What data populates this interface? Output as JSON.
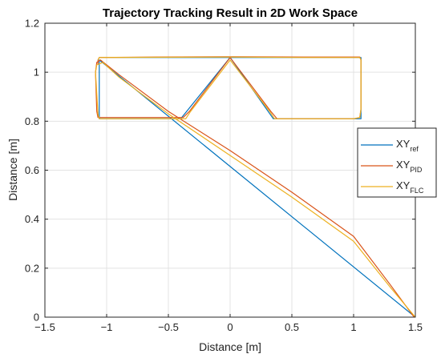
{
  "chart_data": {
    "type": "line",
    "title": "Trajectory Tracking Result in 2D Work Space",
    "xlabel": "Distance [m]",
    "ylabel": "Distance [m]",
    "xlim": [
      -1.5,
      1.5
    ],
    "ylim": [
      0,
      1.2
    ],
    "xticks": [
      -1.5,
      -1,
      -0.5,
      0,
      0.5,
      1,
      1.5
    ],
    "xtick_labels": [
      "−1.5",
      "−1",
      "−0.5",
      "0",
      "0.5",
      "1",
      "1.5"
    ],
    "yticks": [
      0,
      0.2,
      0.4,
      0.6,
      0.8,
      1,
      1.2
    ],
    "ytick_labels": [
      "0",
      "0.2",
      "0.4",
      "0.6",
      "0.8",
      "1",
      "1.2"
    ],
    "grid": true,
    "legend_position": "right",
    "series": [
      {
        "name": "XY",
        "subscript": "ref",
        "color": "#0072BD",
        "x": [
          1.5,
          -1.06,
          -1.06,
          -0.4,
          0,
          0.35,
          1.06,
          1.06,
          -1.06
        ],
        "y": [
          0.0,
          1.05,
          0.81,
          0.81,
          1.06,
          0.81,
          0.81,
          1.06,
          1.06
        ]
      },
      {
        "name": "XY",
        "subscript": "PID",
        "color": "#D95319",
        "x": [
          1.49,
          1.3,
          1.0,
          0.5,
          0.0,
          -0.5,
          -0.9,
          -1.05,
          -1.08,
          -1.09,
          -1.08,
          -1.07,
          -0.6,
          -0.38,
          -0.33,
          0.0,
          0.33,
          0.38,
          1.0,
          1.05,
          1.06,
          1.06,
          1.05,
          0.6,
          0.0,
          -0.6,
          -1.06,
          -1.07,
          -1.07
        ],
        "y": [
          0.0,
          0.13,
          0.33,
          0.51,
          0.68,
          0.84,
          0.99,
          1.05,
          1.04,
          1.0,
          0.84,
          0.815,
          0.815,
          0.815,
          0.84,
          1.06,
          0.84,
          0.81,
          0.81,
          0.815,
          0.85,
          1.05,
          1.062,
          1.062,
          1.063,
          1.062,
          1.06,
          1.05,
          1.03
        ]
      },
      {
        "name": "XY",
        "subscript": "FLC",
        "color": "#EDB120",
        "x": [
          1.5,
          1.3,
          1.0,
          0.5,
          0.0,
          -0.5,
          -0.9,
          -1.03,
          -1.08,
          -1.09,
          -1.07,
          -1.06,
          -0.6,
          -0.36,
          -0.32,
          0.0,
          0.32,
          0.36,
          1.0,
          1.05,
          1.06,
          1.06,
          1.05,
          0.6,
          0.0,
          -0.6,
          -1.06,
          -1.07
        ],
        "y": [
          0.0,
          0.12,
          0.31,
          0.49,
          0.66,
          0.83,
          0.98,
          1.04,
          1.03,
          1.0,
          0.83,
          0.81,
          0.81,
          0.81,
          0.84,
          1.05,
          0.84,
          0.81,
          0.81,
          0.815,
          0.85,
          1.05,
          1.06,
          1.06,
          1.062,
          1.061,
          1.06,
          1.05
        ]
      }
    ]
  }
}
